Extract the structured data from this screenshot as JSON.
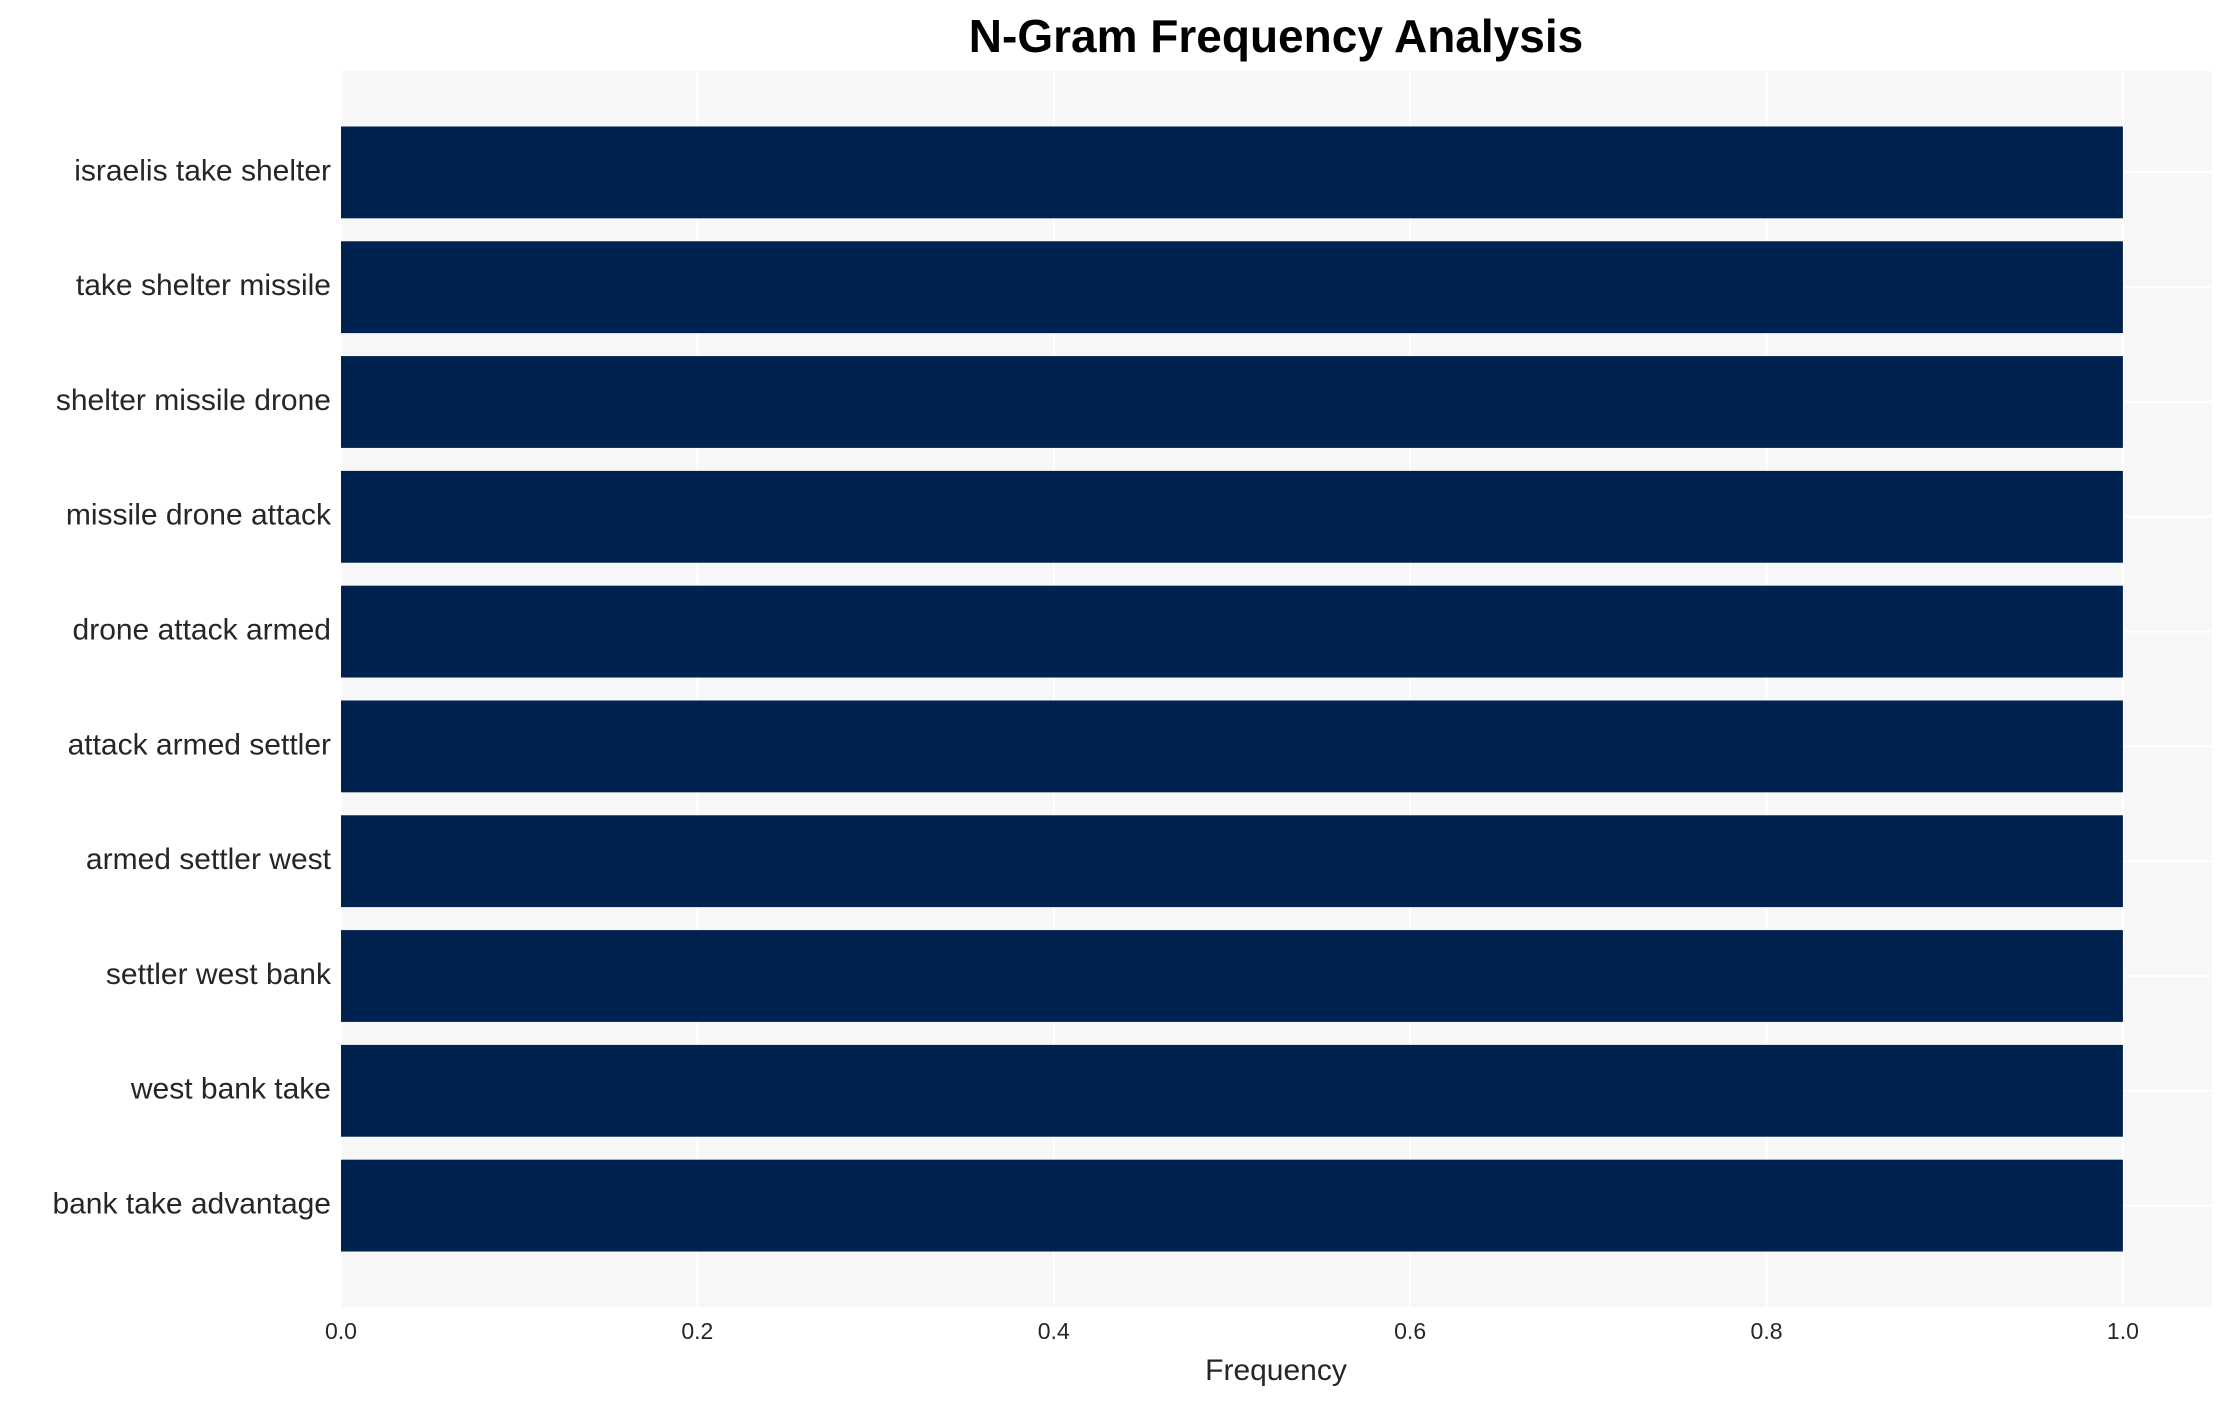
{
  "chart_data": {
    "type": "barh",
    "title": "N-Gram Frequency Analysis",
    "x_label": "Frequency",
    "categories": [
      "israelis take shelter",
      "take shelter missile",
      "shelter missile drone",
      "missile drone attack",
      "drone attack armed",
      "attack armed settler",
      "armed settler west",
      "settler west bank",
      "west bank take",
      "bank take advantage"
    ],
    "values": [
      1,
      1,
      1,
      1,
      1,
      1,
      1,
      1,
      1,
      1
    ],
    "color": "#00224e",
    "xlim": [
      0,
      1.05
    ],
    "xticks": [
      {
        "value": 0,
        "label": "0.0"
      },
      0.2,
      0.4,
      0.6,
      0.8,
      {
        "value": 1,
        "label": "1.0"
      }
    ],
    "grid": true
  }
}
